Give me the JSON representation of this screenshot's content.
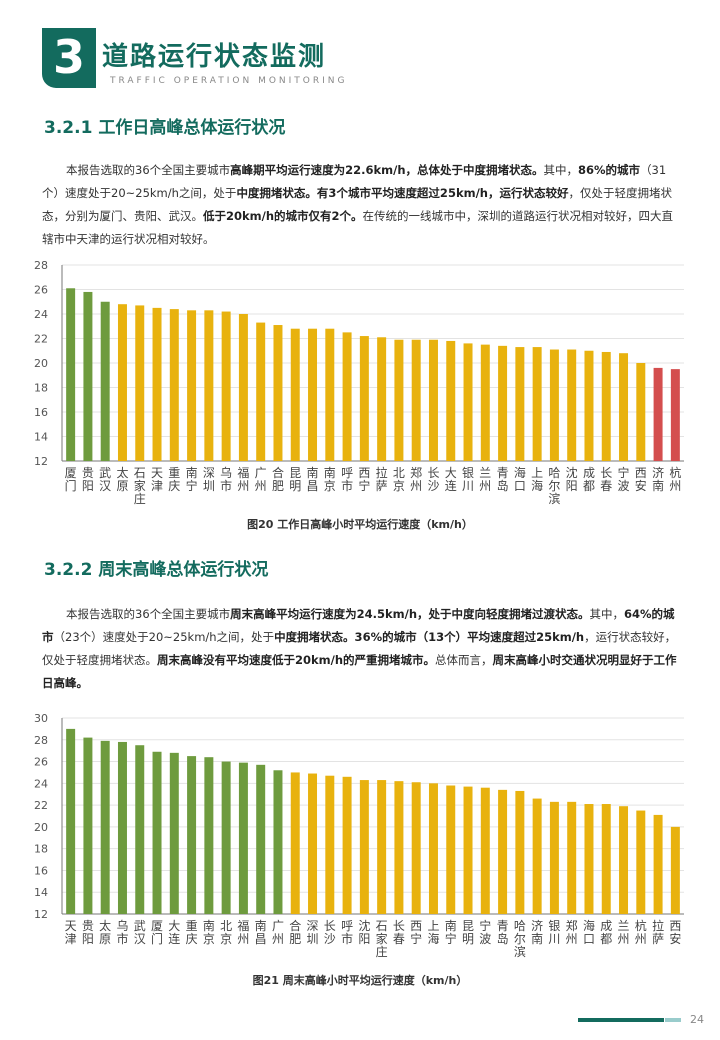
{
  "header": {
    "chapter_number": "3",
    "chapter_title": "道路运行状态监测",
    "chapter_subtitle": "TRAFFIC OPERATION MONITORING"
  },
  "section1": {
    "title": "3.2.1 工作日高峰总体运行状况",
    "para": [
      {
        "t": "本报告选取的36个全国主要城市",
        "b": false
      },
      {
        "t": "高峰期平均运行速度为22.6km/h，总体处于中度拥堵状态。",
        "b": true
      },
      {
        "t": "其中，",
        "b": false
      },
      {
        "t": "86%的城市",
        "b": true
      },
      {
        "t": "（31个）速度处于20~25km/h之间，处于",
        "b": false
      },
      {
        "t": "中度拥堵状态。有3个城市平均速度超过25km/h，运行状态较好",
        "b": true
      },
      {
        "t": "，仅处于轻度拥堵状态，分别为厦门、贵阳、武汉。",
        "b": false
      },
      {
        "t": "低于20km/h的城市仅有2个。",
        "b": true
      },
      {
        "t": "在传统的一线城市中，深圳的道路运行状况相对较好，四大直辖市中天津的运行状况相对较好。",
        "b": false
      }
    ],
    "caption": "图20 工作日高峰小时平均运行速度（km/h）"
  },
  "section2": {
    "title": "3.2.2 周末高峰总体运行状况",
    "para": [
      {
        "t": "本报告选取的36个全国主要城市",
        "b": false
      },
      {
        "t": "周末高峰平均运行速度为24.5km/h，处于中度向轻度拥堵过渡状态。",
        "b": true
      },
      {
        "t": "其中，",
        "b": false
      },
      {
        "t": "64%的城市",
        "b": true
      },
      {
        "t": "（23个）速度处于20~25km/h之间，处于",
        "b": false
      },
      {
        "t": "中度拥堵状态。36%的城市（13个）平均速度超过25km/h",
        "b": true
      },
      {
        "t": "，运行状态较好，仅处于轻度拥堵状态。",
        "b": false
      },
      {
        "t": "周末高峰没有平均速度低于20km/h的严重拥堵城市。",
        "b": true
      },
      {
        "t": "总体而言，",
        "b": false
      },
      {
        "t": "周末高峰小时交通状况明显好于工作日高峰。",
        "b": true
      }
    ],
    "caption": "图21 周末高峰小时平均运行速度（km/h）"
  },
  "colors": {
    "green": "#6e9b3e",
    "yellow": "#e8b20e",
    "red": "#d44e4e",
    "grid": "#e3e3e3",
    "axis": "#555555",
    "brand": "#136b5e"
  },
  "chart_data": [
    {
      "type": "bar",
      "title": "",
      "ylim": [
        12,
        28
      ],
      "yticks": [
        12,
        14,
        16,
        18,
        20,
        22,
        24,
        26,
        28
      ],
      "grid": true,
      "categories": [
        "厦门",
        "贵阳",
        "武汉",
        "太原",
        "石家庄",
        "天津",
        "重庆",
        "南宁",
        "深圳",
        "乌市",
        "福州",
        "广州",
        "合肥",
        "昆明",
        "南昌",
        "南京",
        "呼市",
        "西宁",
        "拉萨",
        "北京",
        "郑州",
        "长沙",
        "大连",
        "银川",
        "兰州",
        "青岛",
        "海口",
        "上海",
        "哈尔滨",
        "沈阳",
        "成都",
        "长春",
        "宁波",
        "西安",
        "济南",
        "杭州"
      ],
      "values": [
        26.1,
        25.8,
        25.0,
        24.8,
        24.7,
        24.5,
        24.4,
        24.3,
        24.3,
        24.2,
        24.0,
        23.3,
        23.1,
        22.8,
        22.8,
        22.8,
        22.5,
        22.2,
        22.1,
        21.9,
        21.9,
        21.9,
        21.8,
        21.6,
        21.5,
        21.4,
        21.3,
        21.3,
        21.1,
        21.1,
        21.0,
        20.9,
        20.8,
        20.0,
        19.6,
        19.5
      ],
      "bar_colors": [
        "green",
        "green",
        "green",
        "yellow",
        "yellow",
        "yellow",
        "yellow",
        "yellow",
        "yellow",
        "yellow",
        "yellow",
        "yellow",
        "yellow",
        "yellow",
        "yellow",
        "yellow",
        "yellow",
        "yellow",
        "yellow",
        "yellow",
        "yellow",
        "yellow",
        "yellow",
        "yellow",
        "yellow",
        "yellow",
        "yellow",
        "yellow",
        "yellow",
        "yellow",
        "yellow",
        "yellow",
        "yellow",
        "yellow",
        "red",
        "red"
      ]
    },
    {
      "type": "bar",
      "title": "",
      "ylim": [
        12,
        30
      ],
      "yticks": [
        12,
        14,
        16,
        18,
        20,
        22,
        24,
        26,
        28,
        30
      ],
      "grid": true,
      "categories": [
        "天津",
        "贵阳",
        "太原",
        "乌市",
        "武汉",
        "厦门",
        "大连",
        "重庆",
        "南京",
        "北京",
        "福州",
        "南昌",
        "广州",
        "合肥",
        "深圳",
        "长沙",
        "呼市",
        "沈阳",
        "石家庄",
        "长春",
        "西宁",
        "上海",
        "南宁",
        "昆明",
        "宁波",
        "青岛",
        "哈尔滨",
        "济南",
        "银川",
        "郑州",
        "海口",
        "成都",
        "兰州",
        "杭州",
        "拉萨",
        "西安"
      ],
      "values": [
        29.0,
        28.2,
        27.9,
        27.8,
        27.5,
        26.9,
        26.8,
        26.5,
        26.4,
        26.0,
        25.9,
        25.7,
        25.2,
        25.0,
        24.9,
        24.7,
        24.6,
        24.3,
        24.3,
        24.2,
        24.1,
        24.0,
        23.8,
        23.7,
        23.6,
        23.4,
        23.3,
        22.6,
        22.3,
        22.3,
        22.1,
        22.1,
        21.9,
        21.5,
        21.1,
        20.0
      ],
      "bar_colors": [
        "green",
        "green",
        "green",
        "green",
        "green",
        "green",
        "green",
        "green",
        "green",
        "green",
        "green",
        "green",
        "green",
        "yellow",
        "yellow",
        "yellow",
        "yellow",
        "yellow",
        "yellow",
        "yellow",
        "yellow",
        "yellow",
        "yellow",
        "yellow",
        "yellow",
        "yellow",
        "yellow",
        "yellow",
        "yellow",
        "yellow",
        "yellow",
        "yellow",
        "yellow",
        "yellow",
        "yellow",
        "yellow"
      ]
    }
  ],
  "footer": {
    "page_number": "24"
  }
}
